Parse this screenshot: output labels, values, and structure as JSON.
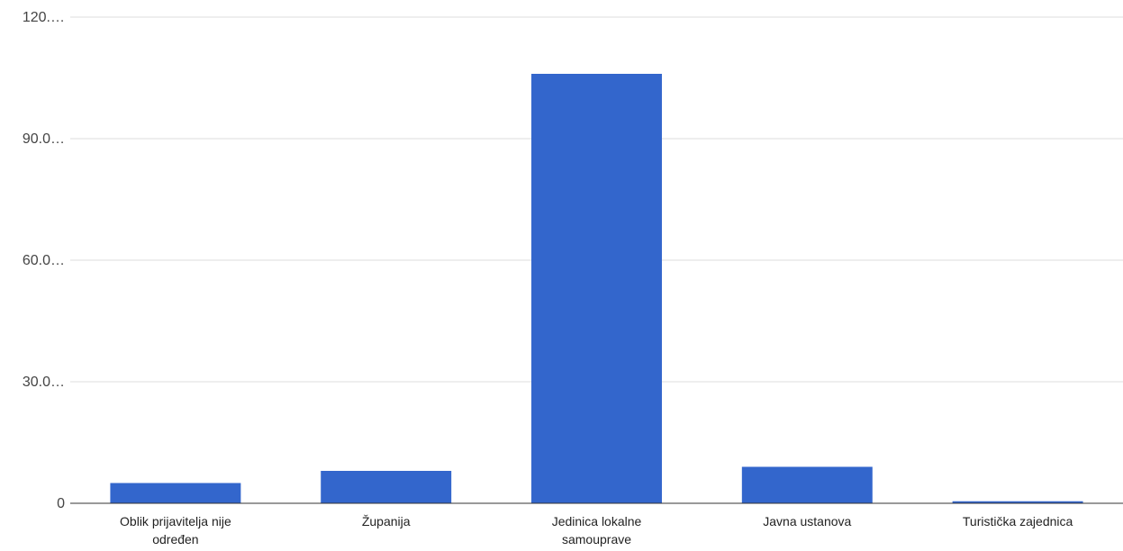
{
  "chart_data": {
    "type": "bar",
    "categories": [
      [
        "Oblik prijavitelja nije",
        "određen"
      ],
      [
        "Županija"
      ],
      [
        "Jedinica lokalne",
        "samouprave"
      ],
      [
        "Javna ustanova"
      ],
      [
        "Turistička zajednica"
      ]
    ],
    "values": [
      5,
      8,
      106,
      9,
      0.5
    ],
    "ylim": [
      0,
      120
    ],
    "yticks": [
      0,
      30,
      60,
      90,
      120
    ],
    "ytick_labels": [
      "0",
      "30.0…",
      "60.0…",
      "90.0…",
      "120.…"
    ],
    "bar_color": "#3366cc",
    "grid": true,
    "legend": "none"
  }
}
